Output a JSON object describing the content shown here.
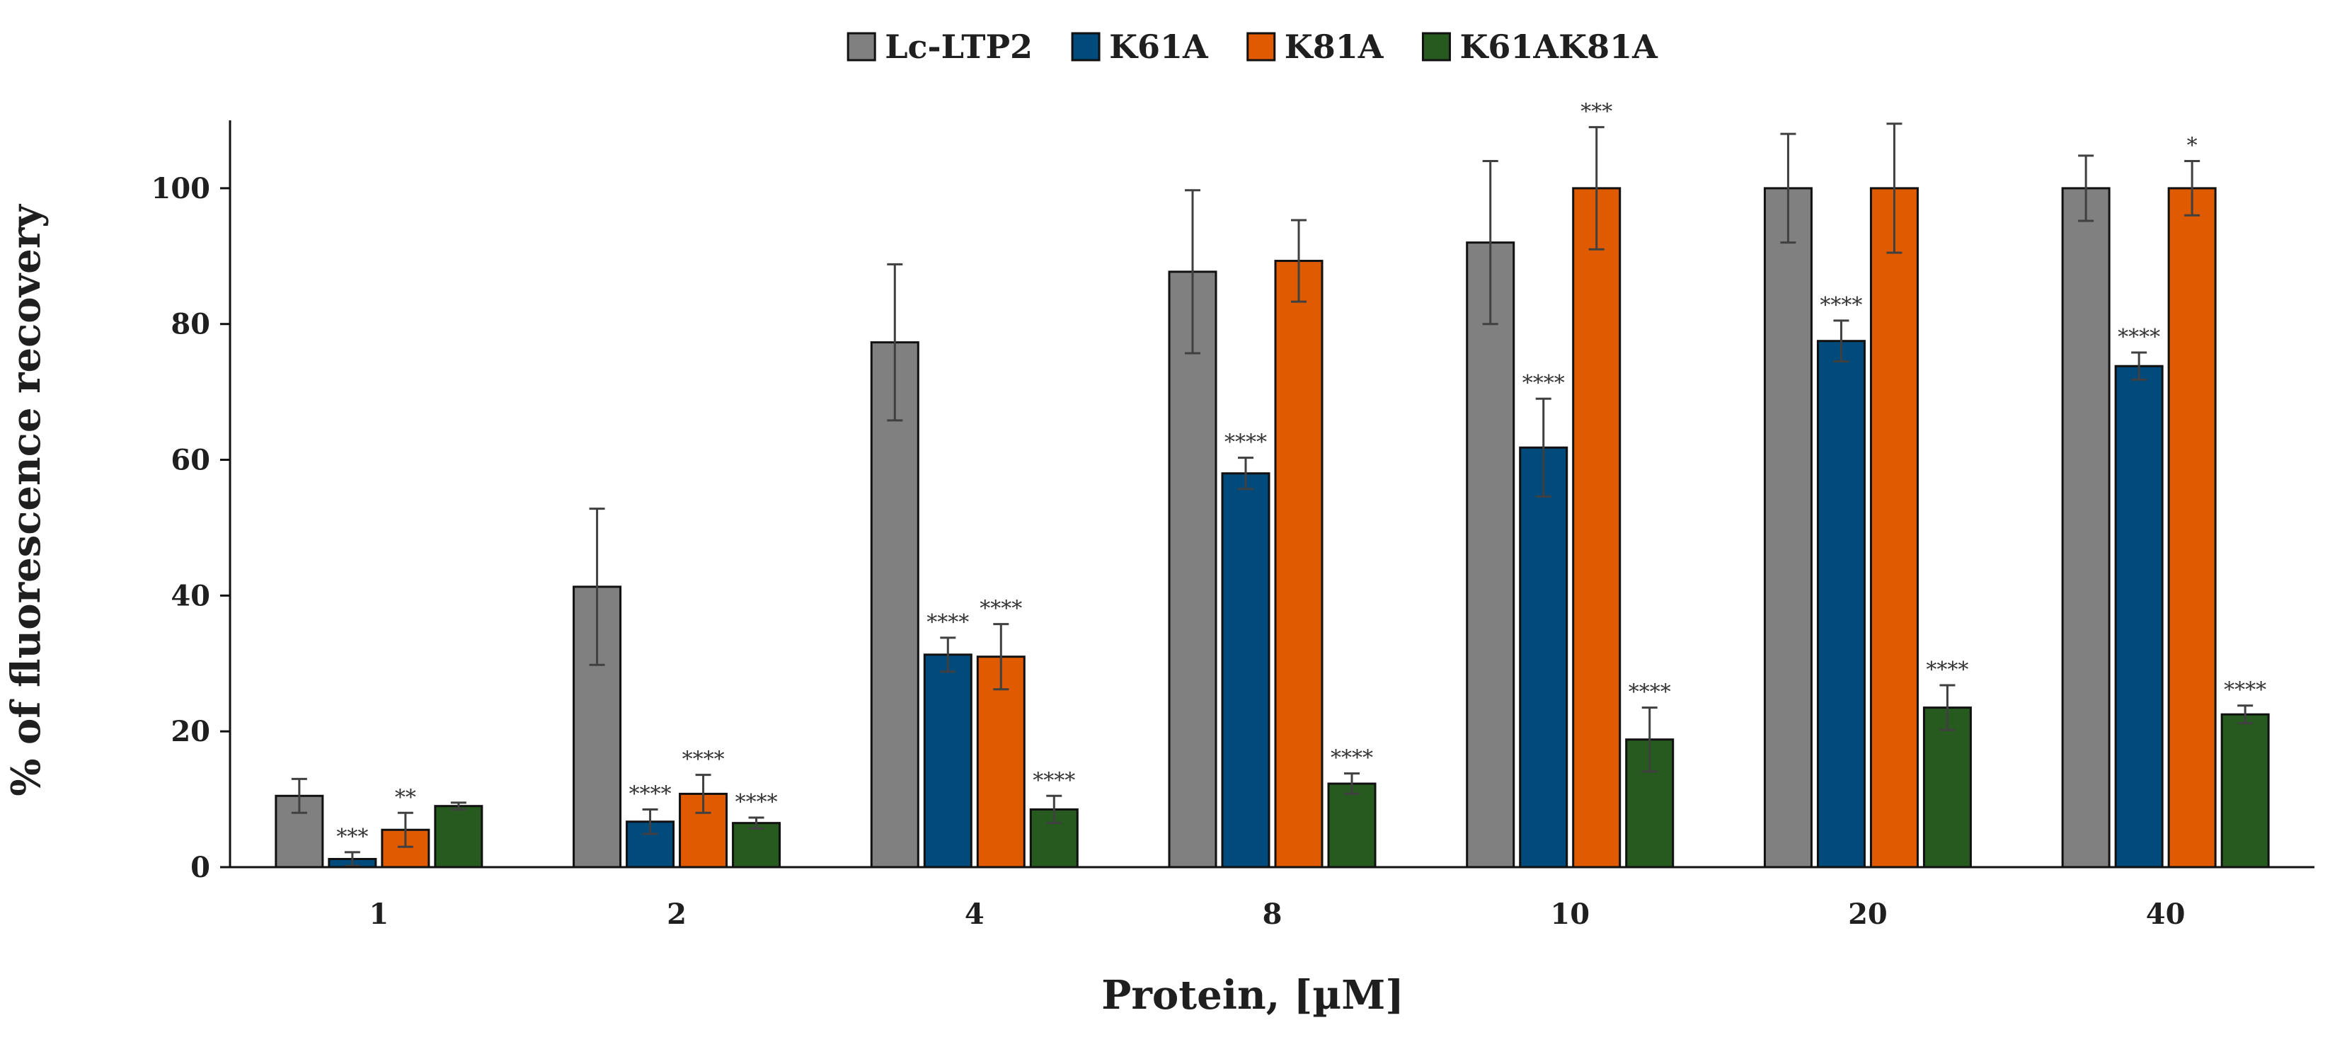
{
  "chart_data": {
    "type": "bar",
    "title": "",
    "xlabel": "Protein, [µM]",
    "ylabel": "% of fluorescence recovery",
    "ylim": [
      0,
      110
    ],
    "yticks": [
      0,
      20,
      40,
      60,
      80,
      100
    ],
    "grid": false,
    "legend_position": "top-center",
    "categories": [
      "1",
      "2",
      "4",
      "8",
      "10",
      "20",
      "40"
    ],
    "series": [
      {
        "name": "Lc-LTP2",
        "color": "#808080",
        "values": [
          10.5,
          41.3,
          77.3,
          87.7,
          92.0,
          100,
          100
        ],
        "errors": [
          2.5,
          11.5,
          11.5,
          12.0,
          12.0,
          8.0,
          4.8
        ],
        "significance": [
          "",
          "",
          "",
          "",
          "",
          "",
          ""
        ]
      },
      {
        "name": "K61A",
        "color": "#004a7c",
        "values": [
          1.2,
          6.7,
          31.3,
          58.0,
          61.8,
          77.5,
          73.8
        ],
        "errors": [
          1.0,
          1.8,
          2.5,
          2.3,
          7.2,
          3.0,
          2.0
        ],
        "significance": [
          "***",
          "****",
          "****",
          "****",
          "****",
          "****",
          "****"
        ]
      },
      {
        "name": "K81A",
        "color": "#e05a00",
        "values": [
          5.5,
          10.8,
          31.0,
          89.3,
          100,
          100,
          100
        ],
        "errors": [
          2.5,
          2.8,
          4.8,
          6.0,
          9.0,
          9.5,
          4.0
        ],
        "significance": [
          "**",
          "****",
          "****",
          "",
          "***",
          "",
          "*"
        ]
      },
      {
        "name": "K61AK81A",
        "color": "#265a1f",
        "values": [
          9.0,
          6.5,
          8.5,
          12.3,
          18.8,
          23.5,
          22.5
        ],
        "errors": [
          0.5,
          0.8,
          2.0,
          1.5,
          4.7,
          3.3,
          1.3
        ],
        "significance": [
          "",
          "****",
          "****",
          "****",
          "****",
          "****",
          "****"
        ]
      }
    ]
  }
}
